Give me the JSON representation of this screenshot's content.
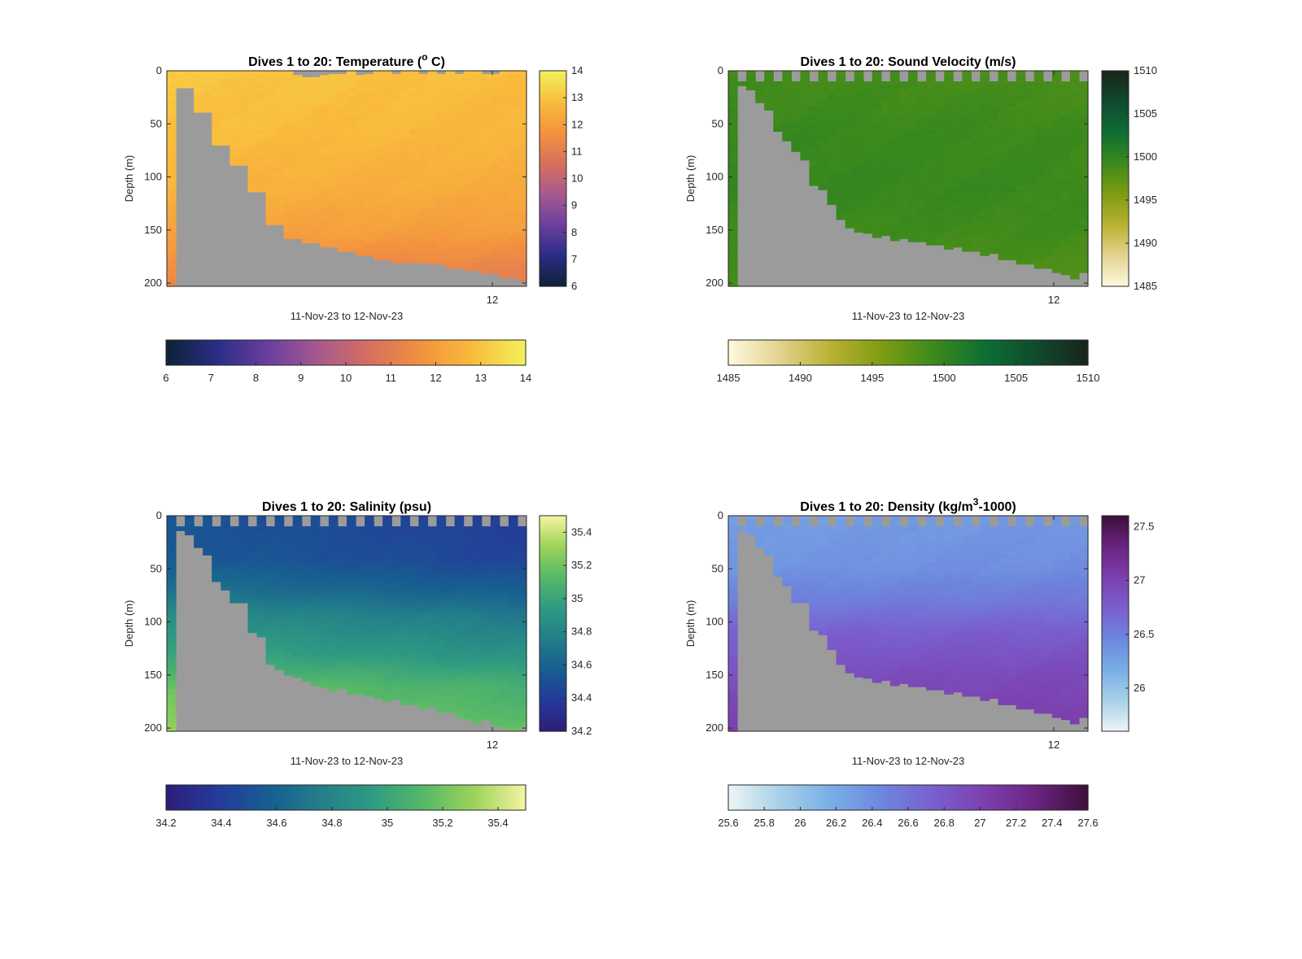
{
  "figure": {
    "background": "#ffffff",
    "mask_color": "#9b9b9b"
  },
  "chart_data": [
    {
      "type": "heatmap",
      "title": "Dives 1 to 20: Temperature (° C)",
      "title_parts": {
        "before": "Dives 1 to 20: Temperature (",
        "sup": "o",
        "after": " C)"
      },
      "xlabel": "11-Nov-23 to 12-Nov-23",
      "ylabel": "Depth (m)",
      "x_tick_labels": [
        "12"
      ],
      "y_ticks": [
        0,
        50,
        100,
        150,
        200
      ],
      "ylim": [
        0,
        203
      ],
      "y_reversed": true,
      "dives": 20,
      "n_columns": 40,
      "max_depth_per_column": [
        203,
        16,
        16,
        39,
        39,
        70,
        70,
        89,
        89,
        114,
        114,
        145,
        145,
        158,
        158,
        162,
        162,
        166,
        166,
        170,
        170,
        174,
        174,
        178,
        178,
        181,
        181,
        181,
        181,
        182,
        182,
        186,
        186,
        188,
        188,
        191,
        191,
        195,
        195,
        198
      ],
      "surface_gap_depth": [
        0,
        0,
        0,
        0,
        0,
        0,
        0,
        0,
        0,
        0,
        0,
        0,
        0,
        0,
        4,
        6,
        6,
        4,
        3,
        3,
        0,
        4,
        3,
        0,
        0,
        3,
        0,
        0,
        3,
        0,
        3,
        0,
        3,
        0,
        0,
        3,
        3,
        0,
        0,
        0
      ],
      "profile": [
        [
          0,
          13.1
        ],
        [
          60,
          12.9
        ],
        [
          110,
          12.6
        ],
        [
          150,
          12.2
        ],
        [
          180,
          11.6
        ],
        [
          205,
          11.2
        ]
      ],
      "x_trend": -0.25,
      "colorbar": {
        "min": 6,
        "max": 14,
        "ticks": [
          6,
          7,
          8,
          9,
          10,
          11,
          12,
          13,
          14
        ],
        "colors": [
          "#0e2236",
          "#2a2d86",
          "#6b3f9e",
          "#a85a8e",
          "#d8705c",
          "#f3933f",
          "#f9bd3c",
          "#f3f25d"
        ]
      }
    },
    {
      "type": "heatmap",
      "title": "Dives 1 to 20: Sound Velocity (m/s)",
      "xlabel": "11-Nov-23 to 12-Nov-23",
      "ylabel": "Depth (m)",
      "x_tick_labels": [
        "12"
      ],
      "y_ticks": [
        0,
        50,
        100,
        150,
        200
      ],
      "ylim": [
        0,
        203
      ],
      "y_reversed": true,
      "dives": 20,
      "n_columns": 40,
      "max_depth_per_column": [
        203,
        14,
        18,
        30,
        37,
        57,
        66,
        76,
        84,
        108,
        112,
        126,
        140,
        148,
        152,
        153,
        157,
        155,
        160,
        158,
        161,
        161,
        164,
        164,
        168,
        166,
        170,
        170,
        174,
        172,
        178,
        178,
        182,
        182,
        186,
        186,
        190,
        192,
        196,
        190
      ],
      "surface_gap_depth": [
        0,
        10,
        0,
        10,
        0,
        10,
        0,
        10,
        0,
        10,
        0,
        10,
        0,
        10,
        0,
        10,
        0,
        10,
        0,
        10,
        0,
        10,
        0,
        10,
        0,
        10,
        0,
        10,
        0,
        10,
        0,
        10,
        0,
        10,
        0,
        10,
        0,
        10,
        0,
        10
      ],
      "profile": [
        [
          0,
          1498.9
        ],
        [
          60,
          1499.6
        ],
        [
          110,
          1499.8
        ],
        [
          150,
          1499.4
        ],
        [
          180,
          1498.9
        ],
        [
          205,
          1498.5
        ]
      ],
      "x_trend": -0.4,
      "colorbar": {
        "min": 1485,
        "max": 1510,
        "ticks": [
          1485,
          1490,
          1495,
          1500,
          1505,
          1510
        ],
        "colors": [
          "#fdf9dd",
          "#e3d38f",
          "#b9b132",
          "#7d9c12",
          "#3c8a1c",
          "#0d6e34",
          "#104a2e",
          "#1a2419"
        ]
      }
    },
    {
      "type": "heatmap",
      "title": "Dives 1 to 20: Salinity (psu)",
      "xlabel": "11-Nov-23 to 12-Nov-23",
      "ylabel": "Depth (m)",
      "x_tick_labels": [
        "12"
      ],
      "y_ticks": [
        0,
        50,
        100,
        150,
        200
      ],
      "ylim": [
        0,
        203
      ],
      "y_reversed": true,
      "dives": 20,
      "n_columns": 40,
      "max_depth_per_column": [
        203,
        14,
        18,
        30,
        37,
        62,
        70,
        82,
        82,
        110,
        114,
        140,
        145,
        150,
        152,
        156,
        160,
        162,
        165,
        163,
        168,
        168,
        170,
        172,
        175,
        173,
        178,
        178,
        182,
        180,
        185,
        185,
        190,
        192,
        196,
        192,
        198,
        200,
        202,
        200
      ],
      "surface_gap_depth": [
        0,
        10,
        0,
        10,
        0,
        10,
        0,
        10,
        0,
        10,
        0,
        10,
        0,
        10,
        0,
        10,
        0,
        10,
        0,
        10,
        0,
        10,
        0,
        10,
        0,
        10,
        0,
        10,
        0,
        10,
        0,
        10,
        0,
        10,
        0,
        10,
        0,
        10,
        0,
        10
      ],
      "profile": [
        [
          0,
          34.52
        ],
        [
          40,
          34.55
        ],
        [
          70,
          34.68
        ],
        [
          95,
          34.85
        ],
        [
          130,
          35.0
        ],
        [
          160,
          35.18
        ],
        [
          190,
          35.25
        ],
        [
          205,
          35.3
        ]
      ],
      "x_trend": -0.12,
      "colorbar": {
        "min": 34.2,
        "max": 35.5,
        "ticks": [
          34.2,
          34.4,
          34.6,
          34.8,
          35,
          35.2,
          35.4
        ],
        "colors": [
          "#2c1e78",
          "#253a9a",
          "#175e91",
          "#237e8a",
          "#2f9a82",
          "#55b868",
          "#9dd35a",
          "#f6f4a3"
        ]
      }
    },
    {
      "type": "heatmap",
      "title": "Dives 1 to 20: Density (kg/m³-1000)",
      "title_parts": {
        "before": "Dives 1 to 20: Density (kg/m",
        "sup": "3",
        "after": "-1000)"
      },
      "xlabel": "11-Nov-23 to 12-Nov-23",
      "ylabel": "Depth (m)",
      "x_tick_labels": [
        "12"
      ],
      "y_ticks": [
        0,
        50,
        100,
        150,
        200
      ],
      "ylim": [
        0,
        203
      ],
      "y_reversed": true,
      "dives": 20,
      "n_columns": 40,
      "max_depth_per_column": [
        203,
        14,
        18,
        30,
        37,
        57,
        66,
        82,
        82,
        108,
        112,
        126,
        140,
        148,
        152,
        153,
        157,
        155,
        160,
        158,
        161,
        161,
        164,
        164,
        168,
        166,
        170,
        170,
        174,
        172,
        178,
        178,
        182,
        182,
        186,
        186,
        190,
        192,
        196,
        190
      ],
      "surface_gap_depth": [
        0,
        10,
        0,
        10,
        0,
        10,
        0,
        10,
        0,
        10,
        0,
        10,
        0,
        10,
        0,
        10,
        0,
        10,
        0,
        10,
        0,
        10,
        0,
        10,
        0,
        10,
        0,
        10,
        0,
        10,
        0,
        10,
        0,
        10,
        0,
        10,
        0,
        10,
        0,
        10
      ],
      "profile": [
        [
          0,
          26.28
        ],
        [
          50,
          26.35
        ],
        [
          80,
          26.5
        ],
        [
          110,
          26.72
        ],
        [
          150,
          26.88
        ],
        [
          190,
          26.98
        ],
        [
          205,
          27.0
        ]
      ],
      "x_trend": 0.06,
      "colorbar": {
        "min": 25.6,
        "max": 27.6,
        "ticks": [
          25.6,
          25.8,
          26,
          26.2,
          26.4,
          26.6,
          26.8,
          27,
          27.2,
          27.4,
          27.6
        ],
        "right_ticks": [
          26,
          26.5,
          27,
          27.5
        ],
        "colors": [
          "#eef5f6",
          "#a8d0e8",
          "#79aee6",
          "#6d86dd",
          "#7a5fcf",
          "#7c3fae",
          "#6a2480",
          "#3c0f3a"
        ]
      }
    }
  ]
}
